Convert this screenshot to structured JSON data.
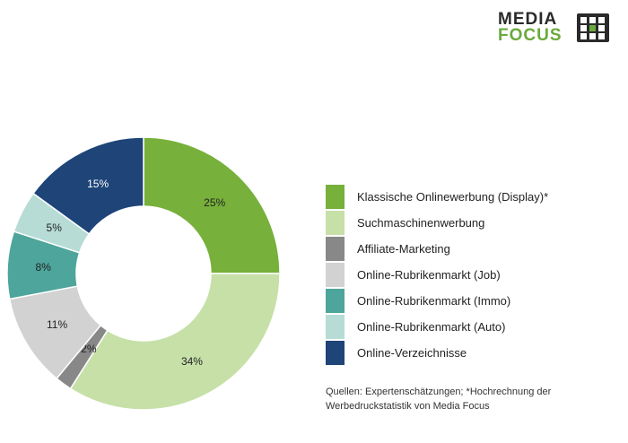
{
  "logo": {
    "line1": "MEDIA",
    "line2": "FOCUS"
  },
  "chart_data": {
    "type": "pie",
    "variant": "donut",
    "categories": [
      "Klassische Onlinewerbung (Display)*",
      "Suchmaschinenwerbung",
      "Affiliate-Marketing",
      "Online-Rubrikenmarkt (Job)",
      "Online-Rubrikenmarkt (Immo)",
      "Online-Rubrikenmarkt (Auto)",
      "Online-Verzeichnisse"
    ],
    "values": [
      25,
      34,
      2,
      11,
      8,
      5,
      15
    ],
    "labels": [
      "25%",
      "34%",
      "2%",
      "11%",
      "8%",
      "5%",
      "15%"
    ],
    "colors": [
      "#77b03a",
      "#c6e0a8",
      "#888888",
      "#d2d2d2",
      "#4ea59b",
      "#b7dcd6",
      "#1e4478"
    ],
    "legend_position": "right"
  },
  "source_note": "Quellen: Expertenschätzungen; *Hochrechnung der Werbedruckstatistik von Media Focus"
}
